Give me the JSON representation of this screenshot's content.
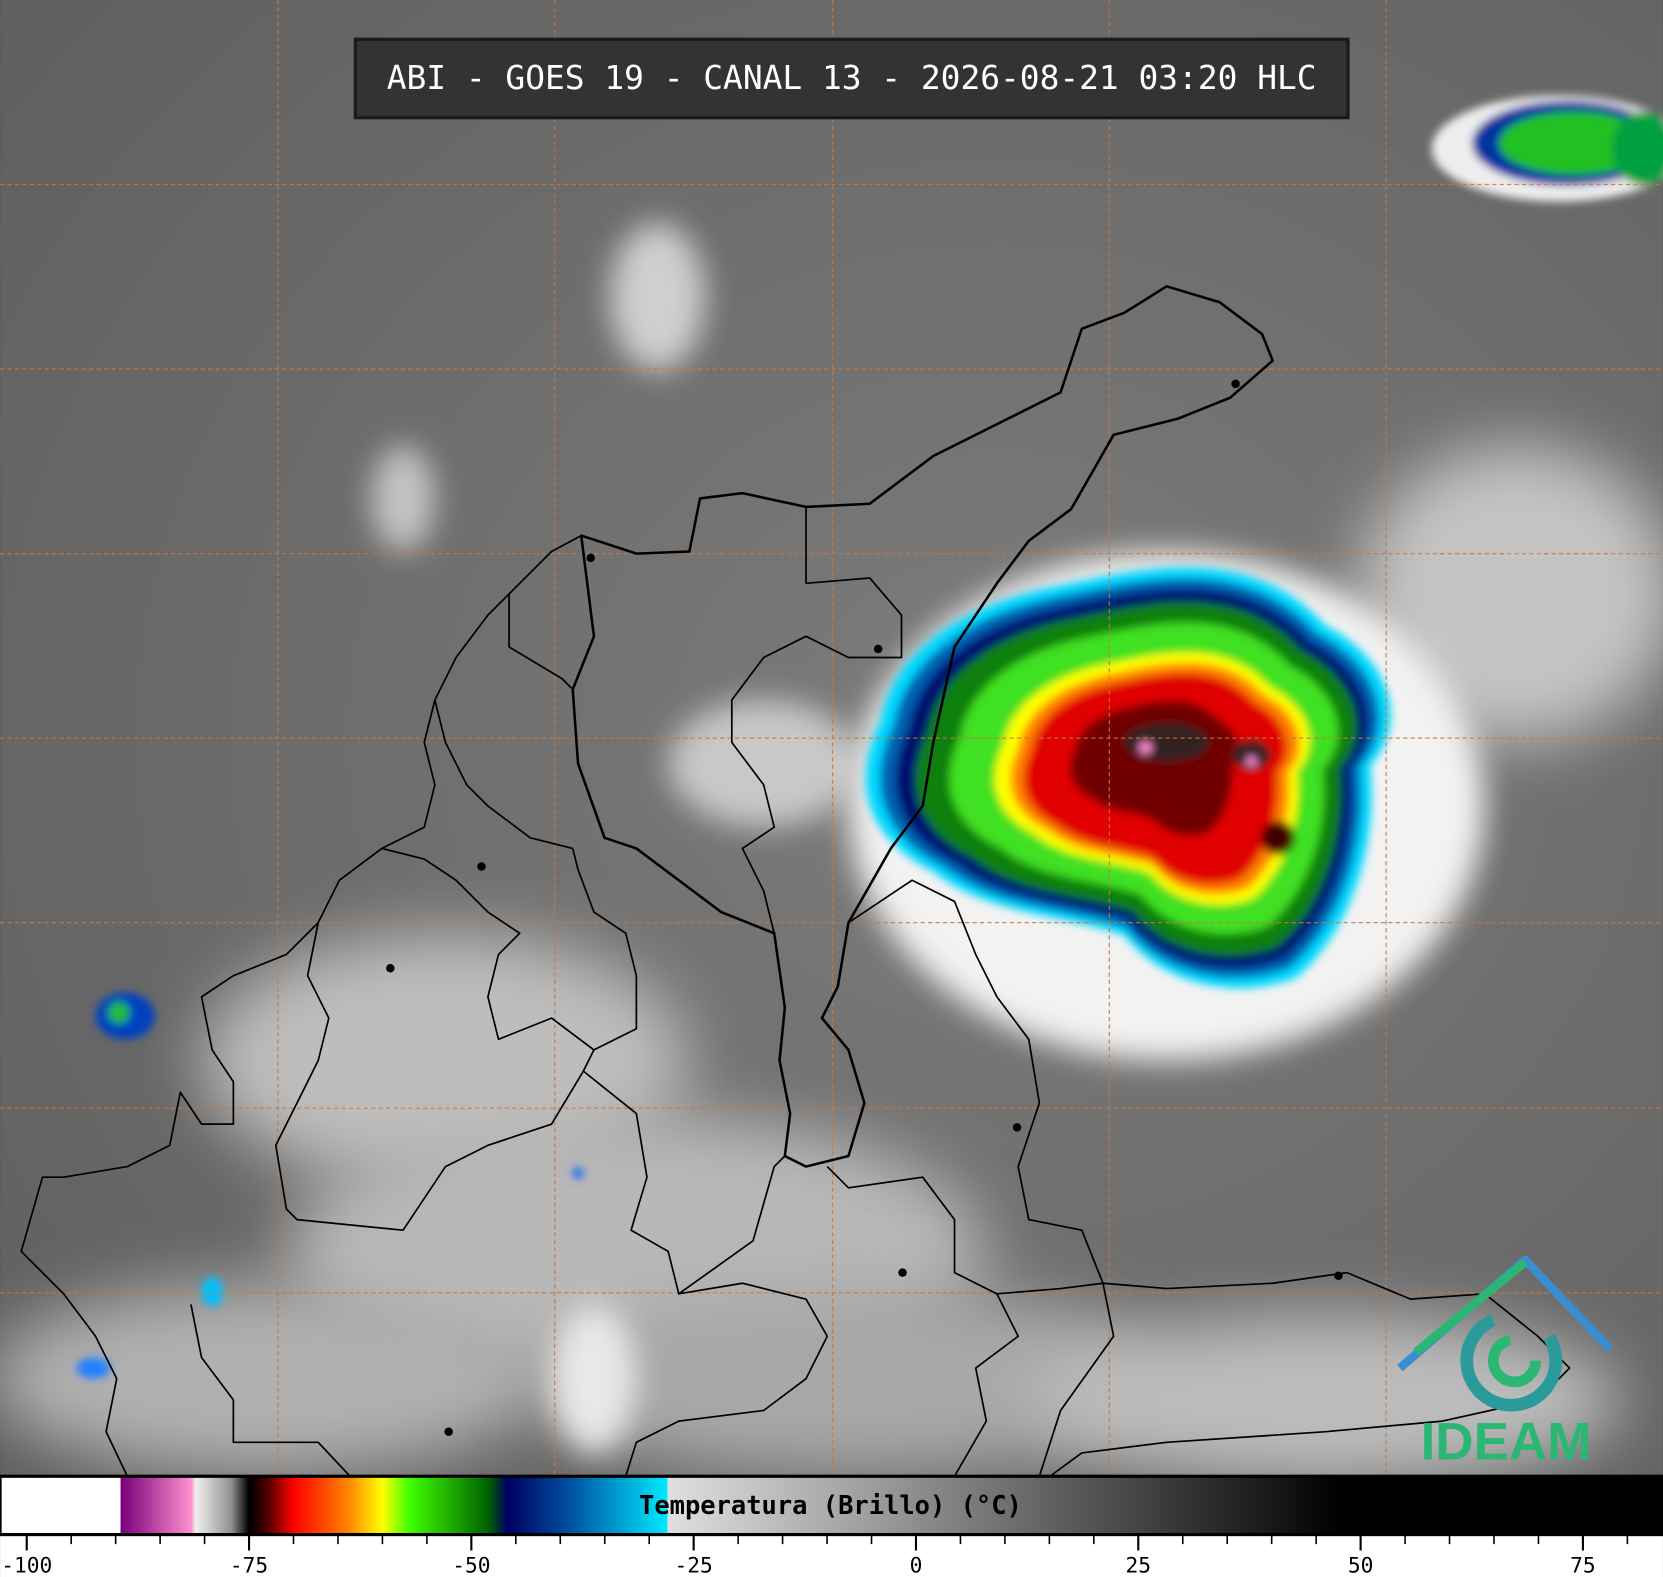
{
  "header": {
    "title": "ABI - GOES 19 - CANAL 13 - 2026-08-21 03:20 HLC"
  },
  "colorbar": {
    "label": "Temperatura (Brillo) (°C)",
    "xlim": [
      -103,
      84
    ],
    "ticks": [
      -100,
      -75,
      -50,
      -25,
      0,
      25,
      50,
      75
    ],
    "minor_ticks": [
      -95,
      -90,
      -85,
      -80,
      -70,
      -65,
      -60,
      -55,
      -45,
      -40,
      -35,
      -30,
      -20,
      -15,
      -10,
      -5,
      5,
      10,
      15,
      20,
      30,
      35,
      40,
      45,
      55,
      60,
      65,
      70,
      80
    ],
    "colormap": [
      [
        -103,
        "#ffffff"
      ],
      [
        -89.5,
        "#ffffff"
      ],
      [
        -89.4,
        "#7a007a"
      ],
      [
        -81.5,
        "#ff90d0"
      ],
      [
        -81,
        "#f0f0f0"
      ],
      [
        -77,
        "#909090"
      ],
      [
        -75,
        "#000000"
      ],
      [
        -73,
        "#4a0000"
      ],
      [
        -70,
        "#ff0000"
      ],
      [
        -64,
        "#ff8000"
      ],
      [
        -60,
        "#ffff00"
      ],
      [
        -57,
        "#40ff00"
      ],
      [
        -48,
        "#006000"
      ],
      [
        -46,
        "#000060"
      ],
      [
        -39,
        "#0050a0"
      ],
      [
        -28,
        "#00e8ff"
      ],
      [
        -27.9,
        "#e0e0e0"
      ],
      [
        48,
        "#000000"
      ],
      [
        84,
        "#000000"
      ]
    ]
  },
  "logo": {
    "text": "IDEAM"
  }
}
